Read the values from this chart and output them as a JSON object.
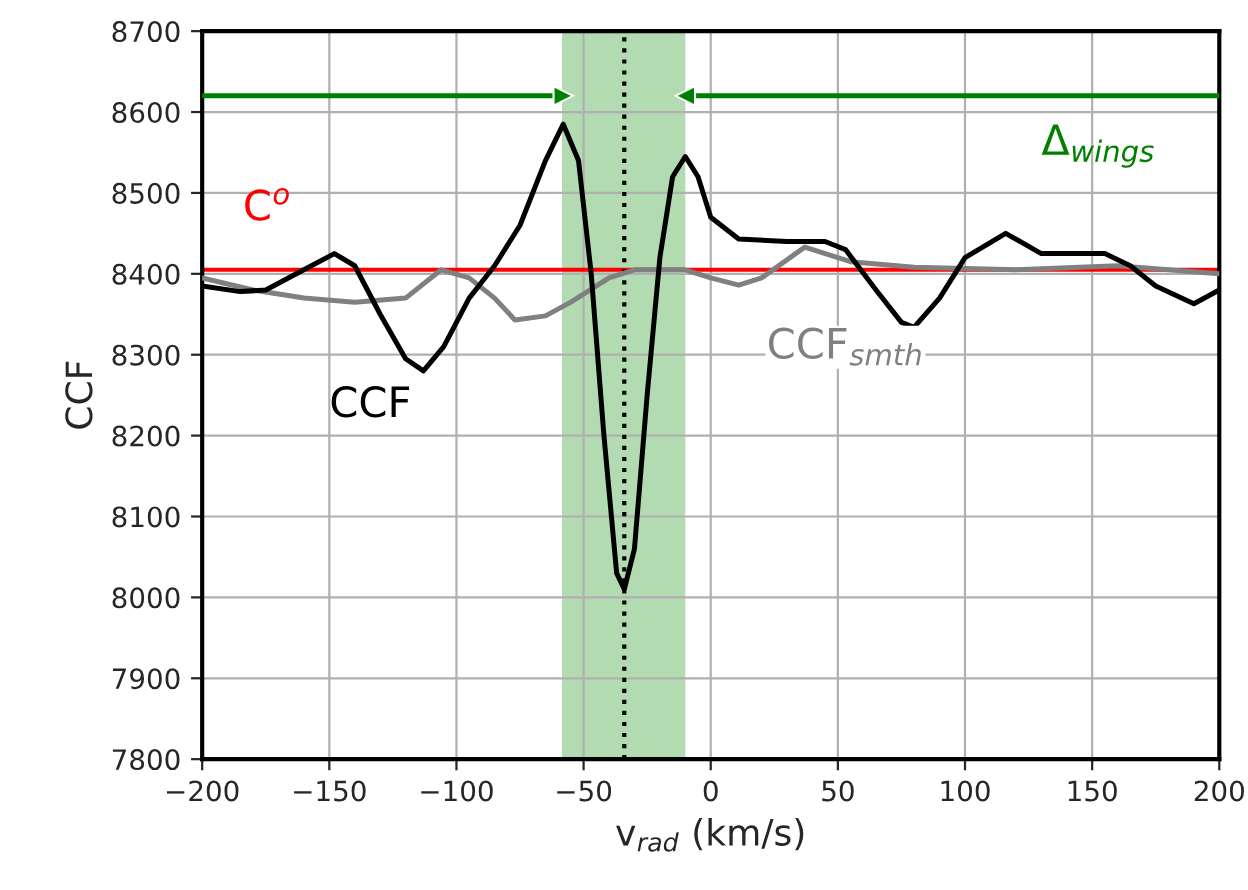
{
  "chart_data": {
    "type": "line",
    "xlabel": "v$_{rad}$ (km/s)",
    "ylabel": "CCF",
    "xlim": [
      -200,
      200
    ],
    "ylim": [
      7800,
      8700
    ],
    "xticks": [
      {
        "value": -200,
        "label": "−200"
      },
      {
        "value": -150,
        "label": "−150"
      },
      {
        "value": -100,
        "label": "−100"
      },
      {
        "value": -50,
        "label": "−50"
      },
      0,
      50,
      100,
      150,
      200
    ],
    "yticks": [
      7800,
      7900,
      8000,
      8100,
      8200,
      8300,
      8400,
      8500,
      8600,
      8700
    ],
    "grid": true,
    "legend": false,
    "line_style": "solid",
    "marker": "none",
    "series": [
      {
        "color": "#808080",
        "x": [
          -200,
          -180,
          -160,
          -140,
          -120,
          -106,
          -95,
          -85,
          -77,
          -65,
          -55,
          -40,
          -30,
          -10,
          0,
          11,
          20,
          37,
          55,
          80,
          120,
          160,
          200
        ],
        "values": [
          8395,
          8380,
          8370,
          8365,
          8370,
          8405,
          8395,
          8370,
          8343,
          8348,
          8365,
          8395,
          8405,
          8405,
          8395,
          8386,
          8395,
          8433,
          8415,
          8408,
          8405,
          8410,
          8400
        ]
      },
      {
        "color": "#000000",
        "x": [
          -200,
          -185,
          -175,
          -160,
          -148,
          -140,
          -130,
          -120,
          -113,
          -105,
          -95,
          -85,
          -75,
          -65,
          -58,
          -52,
          -47,
          -42,
          -37,
          -34,
          -30,
          -25,
          -20,
          -15,
          -10,
          -5,
          0,
          11,
          30,
          45,
          53,
          65,
          75,
          80,
          90,
          100,
          116,
          130,
          140,
          155,
          165,
          175,
          190,
          200
        ],
        "values": [
          8385,
          8378,
          8380,
          8405,
          8425,
          8410,
          8350,
          8295,
          8280,
          8310,
          8370,
          8410,
          8460,
          8540,
          8585,
          8540,
          8400,
          8200,
          8030,
          8010,
          8060,
          8250,
          8420,
          8520,
          8545,
          8520,
          8470,
          8443,
          8440,
          8440,
          8430,
          8380,
          8340,
          8334,
          8370,
          8420,
          8450,
          8425,
          8425,
          8425,
          8410,
          8385,
          8363,
          8380
        ]
      },
      {
        "color": "#008000",
        "marker": "triangle",
        "x": [
          -200,
          -58
        ],
        "values": [
          8620,
          8620
        ]
      },
      {
        "color": "#008000",
        "marker": "triangle",
        "x": [
          200,
          -10
        ],
        "values": [
          8620,
          8620
        ]
      }
    ],
    "ref_lines": [
      {
        "axis": "y",
        "value": 8405,
        "color": "#ff0000",
        "line_style": "solid"
      },
      {
        "axis": "x",
        "value": -34,
        "color": "#000000",
        "line_style": "dotted"
      }
    ],
    "bands": [
      {
        "axis": "x",
        "from": -58.5,
        "to": -10,
        "color": "#b2dbb2"
      }
    ],
    "annotations": [
      "C$^{o}$",
      "CCF",
      "CCF$_{smth}$",
      "Δ$_{wings}$"
    ]
  }
}
